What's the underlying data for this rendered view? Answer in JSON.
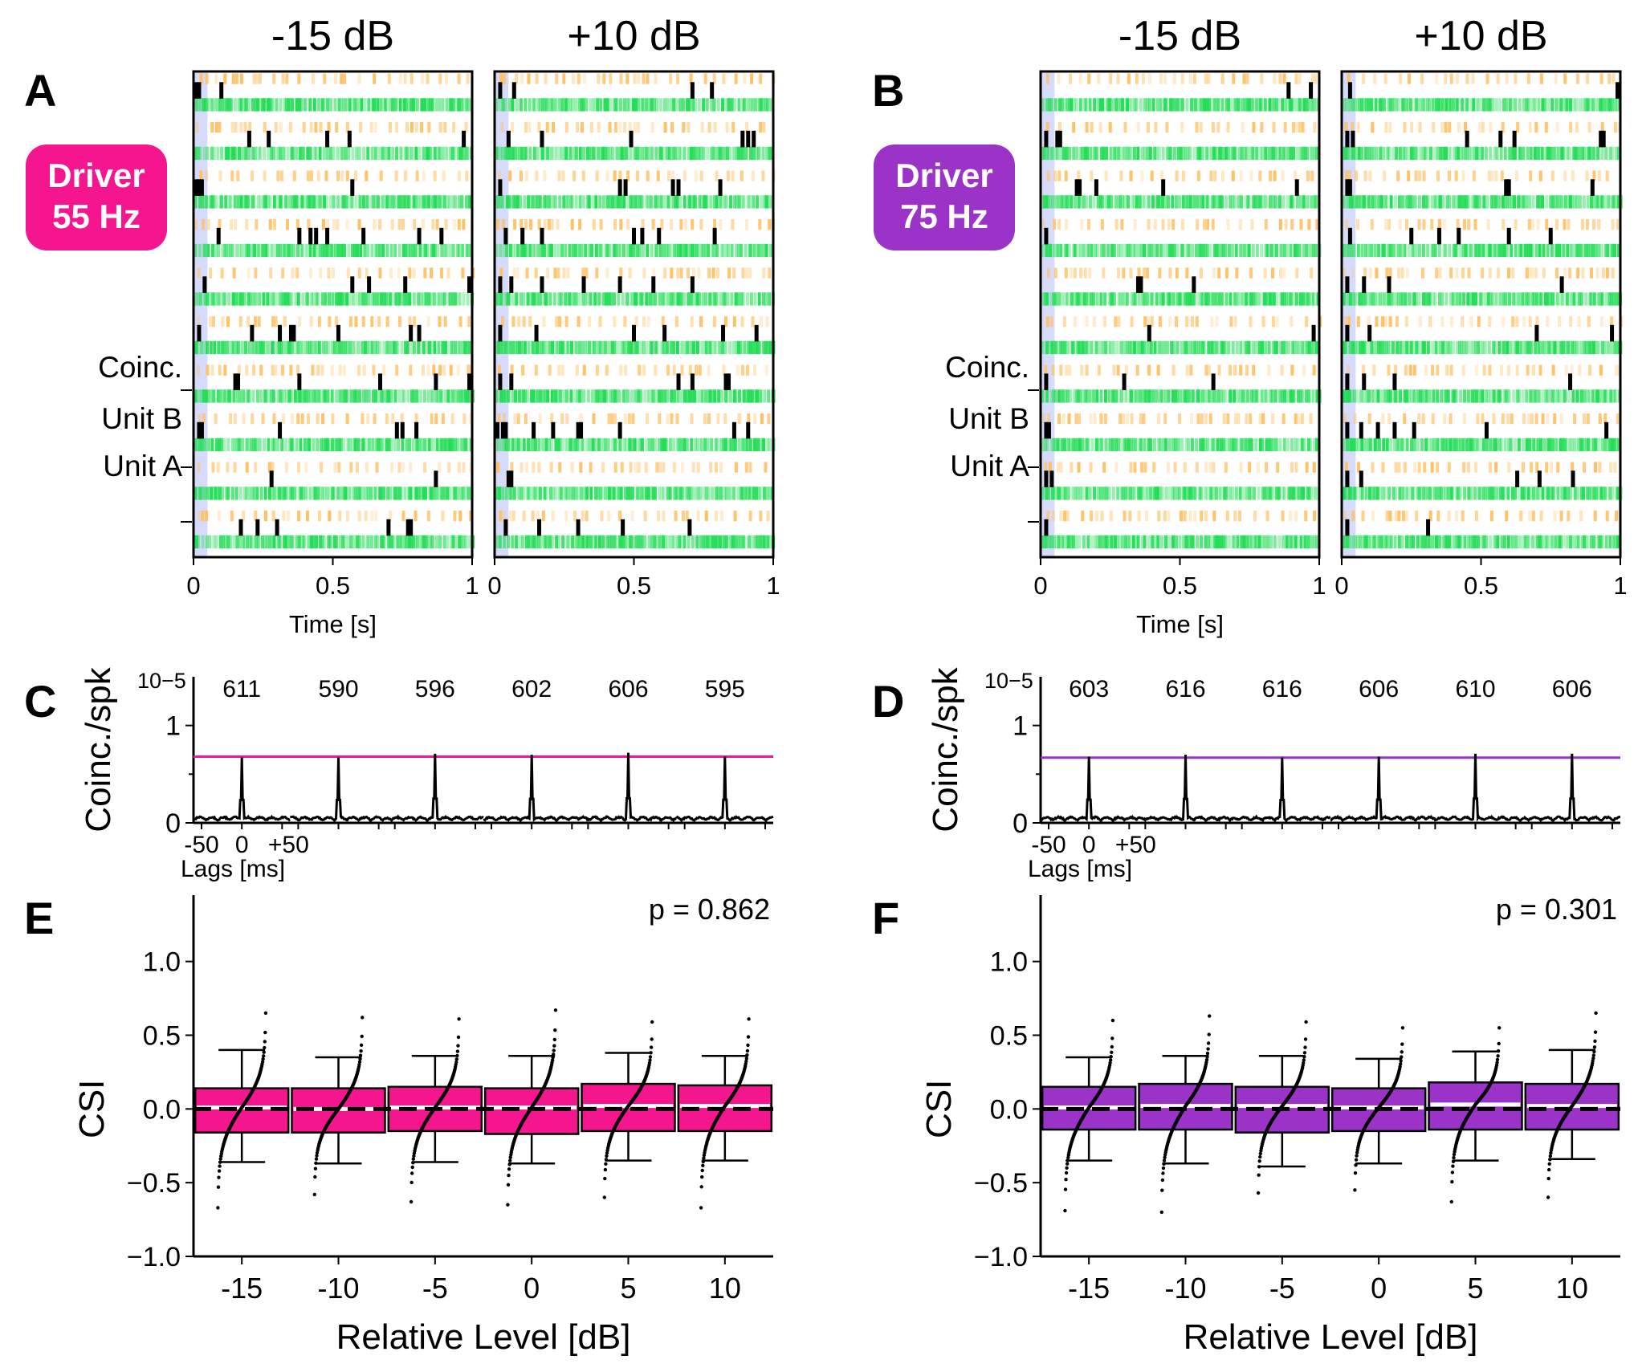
{
  "panel_letters": [
    "A",
    "B",
    "C",
    "D",
    "E",
    "F"
  ],
  "colors": {
    "driver_55": "#f5168f",
    "driver_75": "#9b33c9",
    "unit_a": "#22dd55",
    "unit_b": "#ffc062",
    "coinc": "#000000",
    "stim_shade": "#d7dbfb"
  },
  "chart_data": [
    {
      "type": "raster",
      "panel": "A",
      "driver_label": [
        "Driver",
        "55 Hz"
      ],
      "color_key": "driver_55",
      "condition_titles": [
        "-15 dB",
        "+10 dB"
      ],
      "row_labels": [
        "Coinc.",
        "Unit B",
        "Unit A"
      ],
      "xlabel": "Time [s]",
      "xlim": [
        0,
        1
      ],
      "x_ticks": [
        "0",
        "0.5",
        "1"
      ],
      "n_trials": 10,
      "stim_shade_s": [
        0,
        0.05
      ],
      "coinc_times": [
        [
          [
            0.01,
            0.02,
            0.1
          ],
          [
            0.2,
            0.27,
            0.48,
            0.56,
            0.97
          ],
          [
            0.01,
            0.02,
            0.03,
            0.57
          ],
          [
            0.09,
            0.38,
            0.42,
            0.44,
            0.48,
            0.61,
            0.81,
            0.89
          ],
          [
            0.04,
            0.57,
            0.63,
            0.76,
            0.99
          ],
          [
            0.02,
            0.21,
            0.31,
            0.35,
            0.36,
            0.52,
            0.78,
            0.81
          ],
          [
            0.15,
            0.16,
            0.38,
            0.67,
            0.87,
            0.99
          ],
          [
            0.02,
            0.03,
            0.31,
            0.73,
            0.75,
            0.8
          ],
          [
            0.28,
            0.87
          ],
          [
            0.17,
            0.23,
            0.3,
            0.7,
            0.77,
            0.78
          ]
        ],
        [
          [
            0.02,
            0.07,
            0.71,
            0.78
          ],
          [
            0.05,
            0.17,
            0.49,
            0.89,
            0.91,
            0.93
          ],
          [
            0.02,
            0.45,
            0.47,
            0.64,
            0.66,
            0.81
          ],
          [
            0.04,
            0.1,
            0.17,
            0.5,
            0.53,
            0.59,
            0.79
          ],
          [
            0.02,
            0.06,
            0.17,
            0.32,
            0.45,
            0.57,
            0.71
          ],
          [
            0.02,
            0.15,
            0.5,
            0.61,
            0.82,
            0.94
          ],
          [
            0.02,
            0.06,
            0.66,
            0.71,
            0.83,
            0.84
          ],
          [
            0.01,
            0.03,
            0.04,
            0.14,
            0.21,
            0.3,
            0.31,
            0.45,
            0.86,
            0.91
          ],
          [
            0.05,
            0.06
          ],
          [
            0.04,
            0.16,
            0.3,
            0.46,
            0.7
          ]
        ]
      ]
    },
    {
      "type": "raster",
      "panel": "B",
      "driver_label": [
        "Driver",
        "75 Hz"
      ],
      "color_key": "driver_75",
      "condition_titles": [
        "-15 dB",
        "+10 dB"
      ],
      "row_labels": [
        "Coinc.",
        "Unit B",
        "Unit A"
      ],
      "xlabel": "Time [s]",
      "xlim": [
        0,
        1
      ],
      "x_ticks": [
        "0",
        "0.5",
        "1"
      ],
      "n_trials": 10,
      "stim_shade_s": [
        0,
        0.05
      ],
      "coinc_times": [
        [
          [
            0.89,
            0.97
          ],
          [
            0.02,
            0.06,
            0.07
          ],
          [
            0.13,
            0.14,
            0.2,
            0.44,
            0.92
          ],
          [
            0.02
          ],
          [
            0.35,
            0.36,
            0.55
          ],
          [
            0.39,
            0.98
          ],
          [
            0.02,
            0.3,
            0.62
          ],
          [
            0.02,
            0.03
          ],
          [
            0.02,
            0.04
          ],
          [
            0.02
          ]
        ],
        [
          [
            0.03,
            0.99
          ],
          [
            0.02,
            0.04,
            0.45,
            0.57,
            0.62,
            0.93,
            0.94
          ],
          [
            0.02,
            0.03,
            0.59,
            0.6,
            0.9
          ],
          [
            0.03,
            0.25,
            0.35,
            0.42,
            0.6,
            0.75
          ],
          [
            0.02,
            0.08,
            0.17,
            0.79
          ],
          [
            0.02,
            0.1,
            0.7,
            0.97
          ],
          [
            0.02,
            0.08,
            0.19,
            0.82
          ],
          [
            0.02,
            0.07,
            0.13,
            0.19,
            0.26,
            0.52,
            0.95
          ],
          [
            0.02,
            0.07,
            0.63,
            0.71,
            0.83
          ],
          [
            0.02,
            0.31
          ]
        ]
      ]
    },
    {
      "type": "line",
      "panel": "C",
      "ylabel": "Coinc./spk",
      "exponent": "10−5",
      "y_ticks": [
        "0",
        "1"
      ],
      "ylim": [
        0,
        1.5
      ],
      "lag_window_ms": [
        -60,
        60
      ],
      "lag_tick_labels": [
        "-50",
        "0",
        "+50"
      ],
      "xlabel": "Lags [ms]",
      "color_key": "driver_55",
      "reference_level": 0.68,
      "peaks": [
        0.67,
        0.67,
        0.71,
        0.7,
        0.72,
        0.68
      ],
      "counts": [
        "611",
        "590",
        "596",
        "602",
        "606",
        "595"
      ]
    },
    {
      "type": "line",
      "panel": "D",
      "ylabel": "Coinc./spk",
      "exponent": "10−5",
      "y_ticks": [
        "0",
        "1"
      ],
      "ylim": [
        0,
        1.5
      ],
      "lag_window_ms": [
        -60,
        60
      ],
      "lag_tick_labels": [
        "-50",
        "0",
        "+50"
      ],
      "xlabel": "Lags [ms]",
      "color_key": "driver_75",
      "reference_level": 0.67,
      "peaks": [
        0.68,
        0.7,
        0.67,
        0.68,
        0.71,
        0.71
      ],
      "counts": [
        "603",
        "616",
        "616",
        "606",
        "610",
        "606"
      ]
    },
    {
      "type": "box",
      "panel": "E",
      "ylabel": "CSI",
      "xlabel": "Relative Level [dB]",
      "categories": [
        "-15",
        "-10",
        "-5",
        "0",
        "5",
        "10"
      ],
      "ylim": [
        -1.0,
        1.45
      ],
      "y_ticks": [
        "−1.0",
        "−0.5",
        "0.0",
        "0.5",
        "1.0"
      ],
      "p_value": "p = 0.862",
      "color_key": "driver_55",
      "boxes": [
        {
          "whislo": -0.36,
          "q1": -0.16,
          "med": 0.01,
          "q3": 0.14,
          "whishi": 0.4,
          "min": -0.67,
          "max": 0.65
        },
        {
          "whislo": -0.37,
          "q1": -0.16,
          "med": 0.0,
          "q3": 0.14,
          "whishi": 0.35,
          "min": -0.58,
          "max": 0.62
        },
        {
          "whislo": -0.36,
          "q1": -0.15,
          "med": 0.01,
          "q3": 0.15,
          "whishi": 0.36,
          "min": -0.63,
          "max": 0.61
        },
        {
          "whislo": -0.37,
          "q1": -0.17,
          "med": 0.01,
          "q3": 0.14,
          "whishi": 0.36,
          "min": -0.65,
          "max": 0.67
        },
        {
          "whislo": -0.35,
          "q1": -0.15,
          "med": 0.02,
          "q3": 0.17,
          "whishi": 0.38,
          "min": -0.6,
          "max": 0.59
        },
        {
          "whislo": -0.35,
          "q1": -0.15,
          "med": 0.02,
          "q3": 0.16,
          "whishi": 0.36,
          "min": -0.67,
          "max": 0.61
        }
      ]
    },
    {
      "type": "box",
      "panel": "F",
      "ylabel": "CSI",
      "xlabel": "Relative Level [dB]",
      "categories": [
        "-15",
        "-10",
        "-5",
        "0",
        "5",
        "10"
      ],
      "ylim": [
        -1.0,
        1.45
      ],
      "y_ticks": [
        "−1.0",
        "−0.5",
        "0.0",
        "0.5",
        "1.0"
      ],
      "p_value": "p = 0.301",
      "color_key": "driver_75",
      "boxes": [
        {
          "whislo": -0.35,
          "q1": -0.14,
          "med": 0.01,
          "q3": 0.15,
          "whishi": 0.35,
          "min": -0.69,
          "max": 0.6
        },
        {
          "whislo": -0.37,
          "q1": -0.14,
          "med": 0.02,
          "q3": 0.17,
          "whishi": 0.36,
          "min": -0.7,
          "max": 0.63
        },
        {
          "whislo": -0.39,
          "q1": -0.16,
          "med": 0.02,
          "q3": 0.15,
          "whishi": 0.36,
          "min": -0.57,
          "max": 0.59
        },
        {
          "whislo": -0.37,
          "q1": -0.15,
          "med": 0.01,
          "q3": 0.14,
          "whishi": 0.34,
          "min": -0.55,
          "max": 0.55
        },
        {
          "whislo": -0.35,
          "q1": -0.14,
          "med": 0.03,
          "q3": 0.18,
          "whishi": 0.39,
          "min": -0.63,
          "max": 0.55
        },
        {
          "whislo": -0.34,
          "q1": -0.14,
          "med": 0.02,
          "q3": 0.17,
          "whishi": 0.4,
          "min": -0.6,
          "max": 0.65
        }
      ]
    }
  ]
}
